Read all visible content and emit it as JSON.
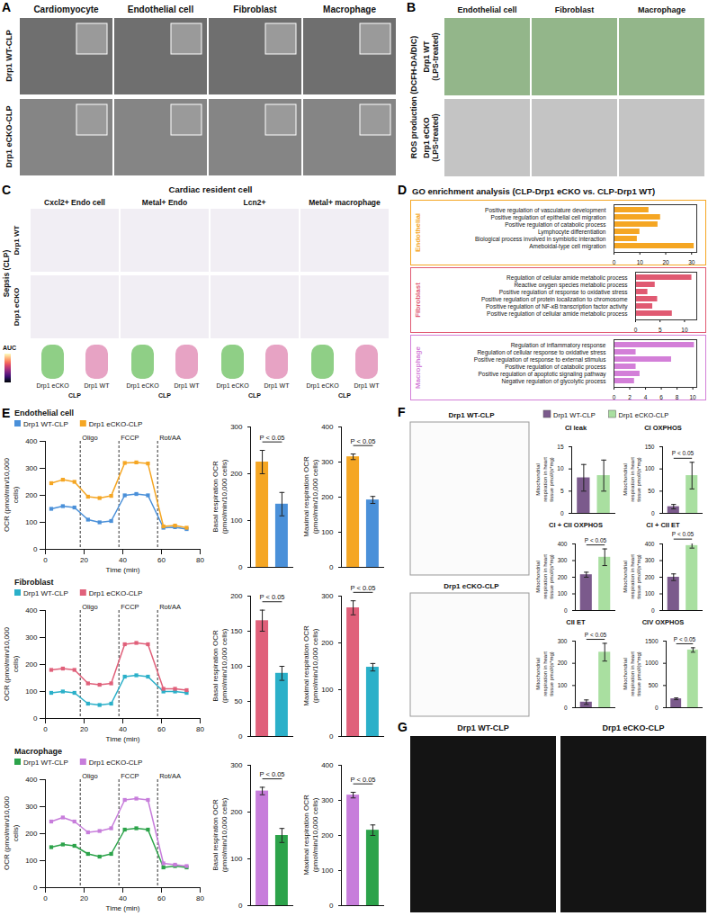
{
  "panels": [
    {
      "letter": "A",
      "columns": [
        "Cardiomyocyte",
        "Endothelial cell",
        "Fibroblast",
        "Macrophage"
      ],
      "rows": [
        "Drp1 WT-CLP",
        "Drp1 eCKO-CLP"
      ]
    },
    {
      "letter": "B",
      "side_label": "ROS production (DCFH-DA/DIC)",
      "columns": [
        "Endothelial cell",
        "Fibroblast",
        "Macrophage"
      ],
      "rows": [
        "Drp1 WT (LPS-treated)",
        "Drp1 eCKO (LPS-treated)"
      ]
    },
    {
      "letter": "C",
      "title": "Cardiac resident cell",
      "condition": "Sepsis (CLP)",
      "columns": [
        "Cxcl2+ Endo cell",
        "Metal+ Endo",
        "Lcn2+",
        "Metal+ macrophage"
      ],
      "rows": [
        "Drp1 WT",
        "Drp1 eCKO"
      ],
      "colorbar_label": "AUC",
      "violin_groups": [
        "Drp1 eCKO",
        "Drp1 WT"
      ],
      "violin_condition": "CLP"
    },
    {
      "letter": "D",
      "title": "GO enrichment analysis (CLP-Drp1 eCKO vs. CLP-Drp1 WT)"
    },
    {
      "letter": "E"
    },
    {
      "letter": "F",
      "legend_items": [
        {
          "name": "Drp1 WT-CLP",
          "color": "#7b5a8c"
        },
        {
          "name": "Drp1 eCKO-CLP",
          "color": "#a9dfa0"
        }
      ],
      "traces": [
        "Drp1 WT-CLP",
        "Drp1 eCKO-CLP"
      ]
    },
    {
      "letter": "G",
      "columns": [
        "Drp1 WT-CLP",
        "Drp1 eCKO-CLP"
      ]
    }
  ],
  "chart_data": [
    {
      "type": "bar",
      "orientation": "horizontal",
      "title": "Endothelial",
      "color": "#f5a623",
      "categories": [
        "Positive regulation of vasculature development",
        "Positive regulation of epithelial cell migration",
        "Positive regulation of catabolic process",
        "Lymphocyte differentiation",
        "Biological process involved in symbiotic interaction",
        "Ameboidal-type cell migration"
      ],
      "values": [
        13.5,
        18,
        17,
        10,
        9,
        31
      ],
      "xlim": [
        0,
        32
      ],
      "xticks": [
        0,
        10,
        20,
        30
      ]
    },
    {
      "type": "bar",
      "orientation": "horizontal",
      "title": "Fibroblast",
      "color": "#e05a72",
      "categories": [
        "Regulation of cellular amide metabolic process",
        "Reactive oxygen species metabolic process",
        "Positive regulation of response to oxidative stress",
        "Positive regulation of protein localization to chromosome",
        "Positive regulation of NF-κB transcription factor activity",
        "Positive regulation of cellular amide metabolic process"
      ],
      "values": [
        11.5,
        4,
        2.5,
        4.5,
        3.5,
        7.5
      ],
      "xlim": [
        0,
        12.5
      ],
      "xticks": [
        0,
        5,
        10
      ]
    },
    {
      "type": "bar",
      "orientation": "horizontal",
      "title": "Macrophage",
      "color": "#d37fd8",
      "categories": [
        "Regulation of inflammatory response",
        "Regulation of cellular response to oxidative stress",
        "Positive regulation of response to external stimulus",
        "Positive regulation of catabolic process",
        "Positive regulation of apoptotic signaling pathway",
        "Negative regulation of glycolytic process"
      ],
      "values": [
        10.2,
        2.8,
        7.3,
        2.8,
        3.3,
        2.6
      ],
      "xlim": [
        0,
        10.5
      ],
      "xticks": [
        0,
        2,
        4,
        6,
        8,
        10
      ]
    },
    {
      "type": "line",
      "title": "Endothelial cell",
      "legend": "top",
      "x_label": "Time (min)",
      "y_label": "OCR (pmol/min/10,000 cells)",
      "x": [
        3,
        9,
        15,
        22,
        28,
        34,
        41,
        47,
        53,
        61,
        67,
        73
      ],
      "series": [
        {
          "name": "Drp1 WT-CLP",
          "color": "#4a90d9",
          "marker": "square",
          "values": [
            150,
            160,
            155,
            110,
            100,
            105,
            200,
            205,
            200,
            80,
            82,
            75
          ]
        },
        {
          "name": "Drp1 eCKO-CLP",
          "color": "#f5a623",
          "marker": "square",
          "values": [
            245,
            258,
            250,
            195,
            190,
            198,
            320,
            322,
            318,
            85,
            88,
            80
          ]
        }
      ],
      "xlim": [
        0,
        80
      ],
      "xticks": [
        0,
        20,
        40,
        60,
        80
      ],
      "ylim": [
        0,
        400
      ],
      "yticks": [
        0,
        100,
        200,
        300,
        400
      ],
      "events": [
        {
          "label": "Oligo",
          "x": 18
        },
        {
          "label": "FCCP",
          "x": 38
        },
        {
          "label": "Rot/AA",
          "x": 58
        }
      ]
    },
    {
      "type": "bar",
      "tick_labels": "y",
      "categories": [
        "Drp1 eCKO-CLP",
        "Drp1 WT-CLP"
      ],
      "values": [
        225,
        135
      ],
      "errors": [
        25,
        25
      ],
      "colors": [
        "#f5a623",
        "#4a90d9"
      ],
      "y_label": "Basal respiration OCR (pmol/min/10,000 cells)",
      "ylim": [
        0,
        300
      ],
      "yticks": [
        0,
        100,
        200,
        300
      ],
      "annotation": "P < 0.05"
    },
    {
      "type": "bar",
      "tick_labels": "y",
      "categories": [
        "Drp1 eCKO-CLP",
        "Drp1 WT-CLP"
      ],
      "values": [
        315,
        192
      ],
      "errors": [
        8,
        10
      ],
      "colors": [
        "#f5a623",
        "#4a90d9"
      ],
      "y_label": "Maximal respiration OCR (pmol/min/10,000 cells)",
      "ylim": [
        0,
        400
      ],
      "yticks": [
        0,
        100,
        200,
        300,
        400
      ],
      "annotation": "P < 0.05"
    },
    {
      "type": "line",
      "title": "Fibroblast",
      "legend": "top",
      "x_label": "Time (min)",
      "y_label": "OCR (pmol/min/10,000 cells)",
      "x": [
        3,
        9,
        15,
        22,
        28,
        34,
        41,
        47,
        53,
        61,
        67,
        73
      ],
      "series": [
        {
          "name": "Drp1 WT-CLP",
          "color": "#2bb0c9",
          "marker": "square",
          "values": [
            95,
            100,
            95,
            55,
            50,
            55,
            155,
            160,
            155,
            100,
            100,
            95
          ]
        },
        {
          "name": "Drp1 eCKO-CLP",
          "color": "#e0607a",
          "marker": "square",
          "values": [
            180,
            185,
            180,
            130,
            125,
            130,
            275,
            280,
            275,
            110,
            110,
            105
          ]
        }
      ],
      "xlim": [
        0,
        80
      ],
      "xticks": [
        0,
        20,
        40,
        60,
        80
      ],
      "ylim": [
        0,
        400
      ],
      "yticks": [
        0,
        100,
        200,
        300,
        400
      ],
      "events": [
        {
          "label": "Oligo",
          "x": 18
        },
        {
          "label": "FCCP",
          "x": 38
        },
        {
          "label": "Rot/AA",
          "x": 58
        }
      ]
    },
    {
      "type": "bar",
      "tick_labels": "y",
      "categories": [
        "Drp1 eCKO-CLP",
        "Drp1 WT-CLP"
      ],
      "values": [
        165,
        90
      ],
      "errors": [
        15,
        10
      ],
      "colors": [
        "#e0607a",
        "#2bb0c9"
      ],
      "y_label": "Basal respiration OCR (pmol/min/10,000 cells)",
      "ylim": [
        0,
        200
      ],
      "yticks": [
        0,
        50,
        100,
        150,
        200
      ],
      "annotation": "P < 0.05"
    },
    {
      "type": "bar",
      "tick_labels": "y",
      "categories": [
        "Drp1 eCKO-CLP",
        "Drp1 WT-CLP"
      ],
      "values": [
        275,
        148
      ],
      "errors": [
        15,
        8
      ],
      "colors": [
        "#e0607a",
        "#2bb0c9"
      ],
      "y_label": "Maximal respiration OCR (pmol/min/10,000 cells)",
      "ylim": [
        0,
        300
      ],
      "yticks": [
        0,
        100,
        200,
        300
      ],
      "annotation": "P < 0.05"
    },
    {
      "type": "line",
      "title": "Macrophage",
      "legend": "top",
      "x_label": "Time (min)",
      "y_label": "OCR (pmol/min/10,000 cells)",
      "x": [
        3,
        9,
        15,
        22,
        28,
        34,
        41,
        47,
        53,
        61,
        67,
        73
      ],
      "series": [
        {
          "name": "Drp1 WT-CLP",
          "color": "#2ca34a",
          "marker": "square",
          "values": [
            150,
            160,
            155,
            125,
            115,
            125,
            215,
            220,
            215,
            75,
            80,
            75
          ]
        },
        {
          "name": "Drp1 eCKO-CLP",
          "color": "#c77ddb",
          "marker": "square",
          "values": [
            245,
            260,
            245,
            205,
            210,
            220,
            325,
            330,
            325,
            90,
            85,
            80
          ]
        }
      ],
      "xlim": [
        0,
        80
      ],
      "xticks": [
        0,
        20,
        40,
        60,
        80
      ],
      "ylim": [
        0,
        400
      ],
      "yticks": [
        0,
        100,
        200,
        300,
        400
      ],
      "events": [
        {
          "label": "Oligo",
          "x": 18
        },
        {
          "label": "FCCP",
          "x": 38
        },
        {
          "label": "Rot/AA",
          "x": 58
        }
      ]
    },
    {
      "type": "bar",
      "tick_labels": "y",
      "categories": [
        "Drp1 eCKO-CLP",
        "Drp1 WT-CLP"
      ],
      "values": [
        245,
        150
      ],
      "errors": [
        8,
        15
      ],
      "colors": [
        "#c77ddb",
        "#2ca34a"
      ],
      "y_label": "Basal respiration OCR (pmol/min/10,000 cells)",
      "ylim": [
        0,
        300
      ],
      "yticks": [
        0,
        100,
        200,
        300
      ],
      "annotation": "P < 0.05"
    },
    {
      "type": "bar",
      "tick_labels": "y",
      "categories": [
        "Drp1 eCKO-CLP",
        "Drp1 WT-CLP"
      ],
      "values": [
        315,
        215
      ],
      "errors": [
        8,
        15
      ],
      "colors": [
        "#c77ddb",
        "#2ca34a"
      ],
      "y_label": "Maximal respiration OCR (pmol/min/10,000 cells)",
      "ylim": [
        0,
        400
      ],
      "yticks": [
        0,
        100,
        200,
        300,
        400
      ],
      "annotation": "P < 0.05"
    },
    {
      "type": "bar",
      "tick_labels": "y",
      "title": "CI leak",
      "categories": [
        "Drp1 WT-CLP",
        "Drp1 eCKO-CLP"
      ],
      "values": [
        8,
        8.5
      ],
      "errors": [
        3,
        3.5
      ],
      "colors": [
        "#7b5a8c",
        "#a9dfa0"
      ],
      "y_label": "Mitochondrial respiration in heart tissue pmol/(s*mg)",
      "ylim": [
        0,
        15
      ],
      "yticks": [
        0,
        5,
        10,
        15
      ]
    },
    {
      "type": "bar",
      "tick_labels": "y",
      "title": "CI OXPHOS",
      "categories": [
        "Drp1 WT-CLP",
        "Drp1 eCKO-CLP"
      ],
      "values": [
        15,
        85
      ],
      "errors": [
        5,
        30
      ],
      "colors": [
        "#7b5a8c",
        "#a9dfa0"
      ],
      "y_label": "Mitochondrial respiration in heart tissue pmol/(s*mg)",
      "ylim": [
        0,
        150
      ],
      "yticks": [
        0,
        50,
        100,
        150
      ],
      "annotation": "P < 0.05"
    },
    {
      "type": "bar",
      "tick_labels": "y",
      "title": "CI + CII OXPHOS",
      "categories": [
        "Drp1 WT-CLP",
        "Drp1 eCKO-CLP"
      ],
      "values": [
        215,
        320
      ],
      "errors": [
        15,
        50
      ],
      "colors": [
        "#7b5a8c",
        "#a9dfa0"
      ],
      "y_label": "Mitochondrial respiration in heart tissue pmol/(s*mg)",
      "ylim": [
        0,
        400
      ],
      "yticks": [
        0,
        100,
        200,
        300,
        400
      ],
      "annotation": "P < 0.05"
    },
    {
      "type": "bar",
      "tick_labels": "y",
      "title": "CI + CII ET",
      "categories": [
        "Drp1 WT-CLP",
        "Drp1 eCKO-CLP"
      ],
      "values": [
        200,
        390
      ],
      "errors": [
        20,
        15
      ],
      "colors": [
        "#7b5a8c",
        "#a9dfa0"
      ],
      "y_label": "Mitochondrial respiration in heart tissue pmol/(s*mg)",
      "ylim": [
        0,
        400
      ],
      "yticks": [
        0,
        100,
        200,
        300,
        400
      ],
      "annotation": "P < 0.05"
    },
    {
      "type": "bar",
      "tick_labels": "y",
      "title": "CII ET",
      "categories": [
        "Drp1 WT-CLP",
        "Drp1 eCKO-CLP"
      ],
      "values": [
        25,
        250
      ],
      "errors": [
        10,
        40
      ],
      "colors": [
        "#7b5a8c",
        "#a9dfa0"
      ],
      "y_label": "Mitochondrial respiration in heart tissue pmol/(s*mg)",
      "ylim": [
        0,
        300
      ],
      "yticks": [
        0,
        100,
        200,
        300
      ],
      "annotation": "P < 0.05"
    },
    {
      "type": "bar",
      "tick_labels": "y",
      "title": "CIV OXPHOS",
      "categories": [
        "Drp1 WT-CLP",
        "Drp1 eCKO-CLP"
      ],
      "values": [
        200,
        1300
      ],
      "errors": [
        20,
        50
      ],
      "colors": [
        "#7b5a8c",
        "#a9dfa0"
      ],
      "y_label": "Mitochondrial respiration in heart tissue pmol/(s*mg)",
      "ylim": [
        0,
        1500
      ],
      "yticks": [
        0,
        500,
        1000,
        1500
      ],
      "annotation": "P < 0.05"
    }
  ]
}
